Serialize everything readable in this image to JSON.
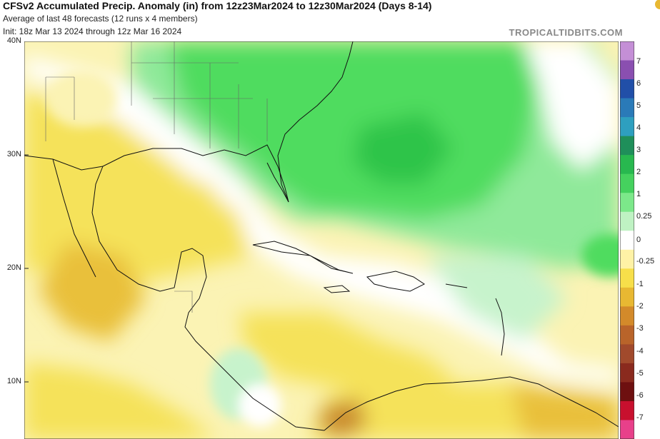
{
  "header": {
    "title": "CFSv2 Accumulated Precip. Anomaly (in) from 12z23Mar2024 to 12z30Mar2024 (Days 8-14)",
    "line2": "Average of last 48 forecasts (12 runs x 4 members)",
    "line3": "Init: 18z Mar 13 2024 through 12z Mar 16 2024",
    "brand": "TROPICALTIDBITS.COM"
  },
  "lat_labels": [
    "40N",
    "30N",
    "20N",
    "10N"
  ],
  "colorbar": {
    "labels": [
      "7",
      "6",
      "5",
      "4",
      "3",
      "2",
      "1",
      "0.25",
      "0",
      "-0.25",
      "-1",
      "-2",
      "-3",
      "-4",
      "-5",
      "-6",
      "-7"
    ],
    "colors": [
      "#c48fd6",
      "#8a4fb0",
      "#214fa8",
      "#2a7ab8",
      "#2e9fbf",
      "#1f8f5a",
      "#28b84f",
      "#45d15e",
      "#7ce88a",
      "#bff2c3",
      "#ffffff",
      "#fff2a6",
      "#f7df4a",
      "#e8b832",
      "#d38a2a",
      "#b9642a",
      "#a14a2c",
      "#8a2a1e",
      "#6e1010",
      "#c8102e",
      "#e8408a"
    ]
  },
  "map": {
    "anomaly_colors": {
      "strong_wet": "#2fc44a",
      "wet": "#4fdc5f",
      "light_wet": "#8fe99a",
      "very_light_wet": "#c7f3cc",
      "neutral": "#ffffff",
      "light_dry": "#fbf3b4",
      "dry": "#f5e25a",
      "moderate_dry": "#e9c03a",
      "strong_dry": "#c98a2e"
    }
  }
}
